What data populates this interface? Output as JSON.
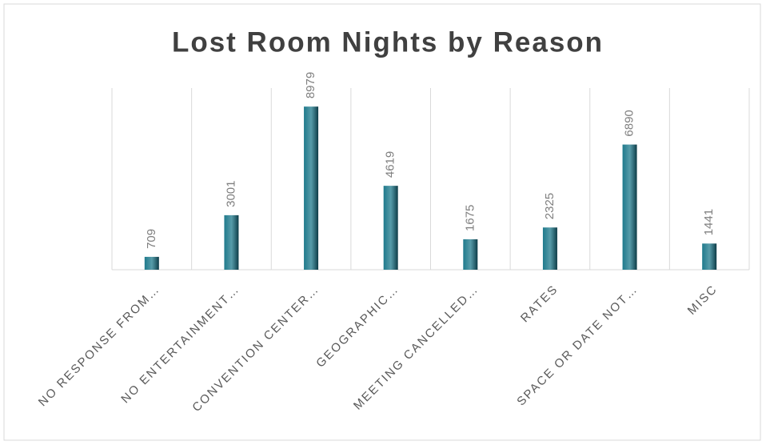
{
  "chart_data": {
    "type": "bar",
    "title": "Lost Room Nights by Reason",
    "categories": [
      "NO RESPONSE FROM…",
      "NO ENTERTAINMENT…",
      "CONVENTION CENTER…",
      "GEOGRAPHIC…",
      "MEETING CANCELLED…",
      "RATES",
      "SPACE OR DATE NOT…",
      "MISC"
    ],
    "values": [
      709,
      3001,
      8979,
      4619,
      1675,
      2325,
      6890,
      1441
    ],
    "color": "#1f7a8c",
    "ylim": [
      0,
      10000
    ]
  }
}
